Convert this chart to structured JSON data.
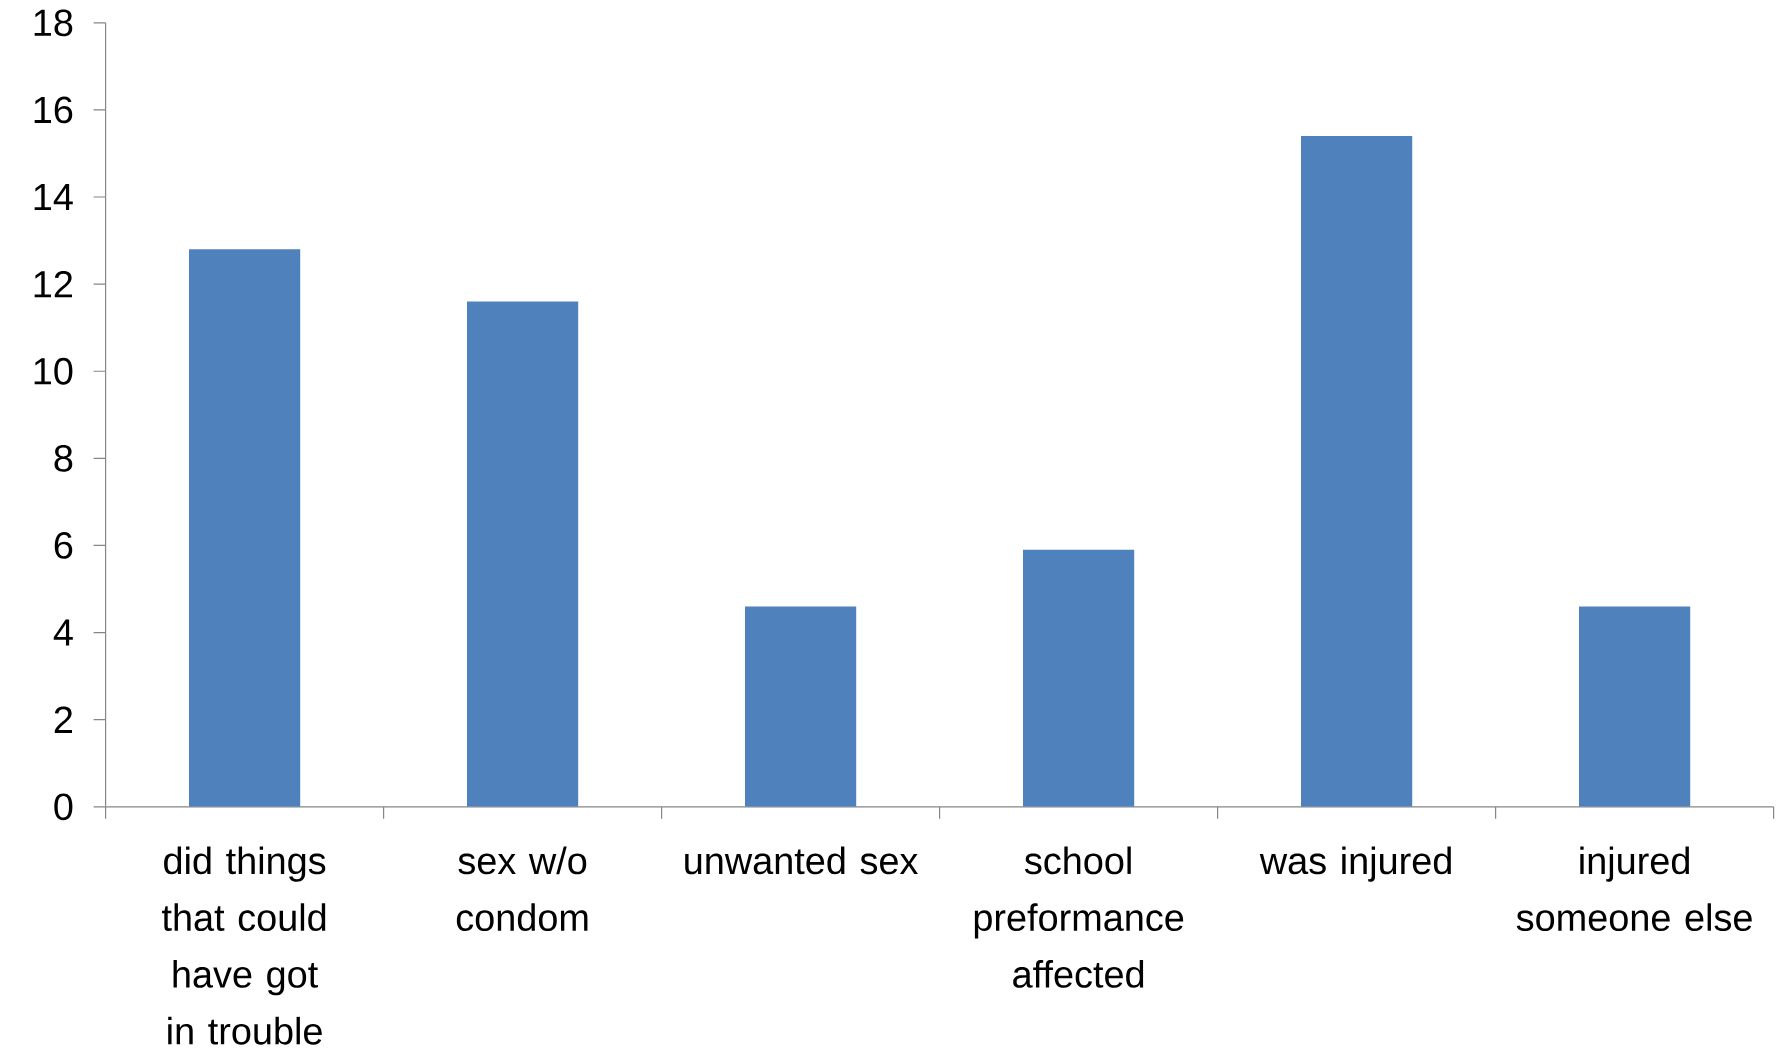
{
  "chart_data": {
    "type": "bar",
    "categories": [
      "did things that could have got in trouble",
      "sex w/o condom",
      "unwanted sex",
      "school preformance affected",
      "was injured",
      "injured someone else"
    ],
    "values": [
      12.8,
      11.6,
      4.6,
      5.9,
      15.4,
      4.6
    ],
    "color": "#4f81bd",
    "ylim": [
      0,
      18
    ],
    "yticks": [
      0,
      2,
      4,
      6,
      8,
      10,
      12,
      14,
      16,
      18
    ],
    "grid": false
  }
}
